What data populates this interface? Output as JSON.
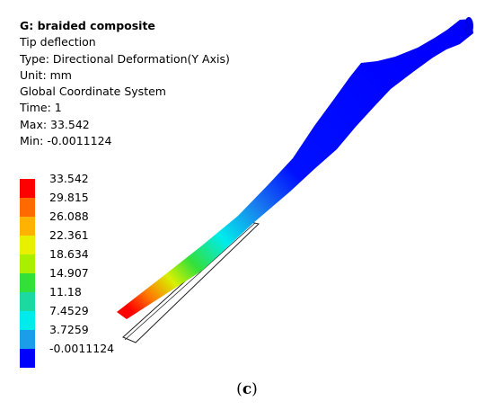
{
  "info": {
    "title": "G: braided composite",
    "result_name": "Tip deflection",
    "type": "Type: Directional Deformation(Y Axis)",
    "unit": "Unit: mm",
    "coordinate_system": "Global Coordinate System",
    "time": "Time: 1",
    "max": "Max: 33.542",
    "min": "Min: -0.0011124"
  },
  "legend": {
    "labels": [
      "33.542",
      "29.815",
      "26.088",
      "22.361",
      "18.634",
      "14.907",
      "11.18",
      "7.4529",
      "3.7259",
      "-0.0011124"
    ],
    "colors": [
      "#ff0000",
      "#ff6a00",
      "#ffb300",
      "#e8f000",
      "#a8ef00",
      "#33e03a",
      "#1bd9a0",
      "#00ecec",
      "#1a9ee8",
      "#0000ff"
    ]
  },
  "caption": {
    "open": "(",
    "letter": "c",
    "close": ")"
  }
}
